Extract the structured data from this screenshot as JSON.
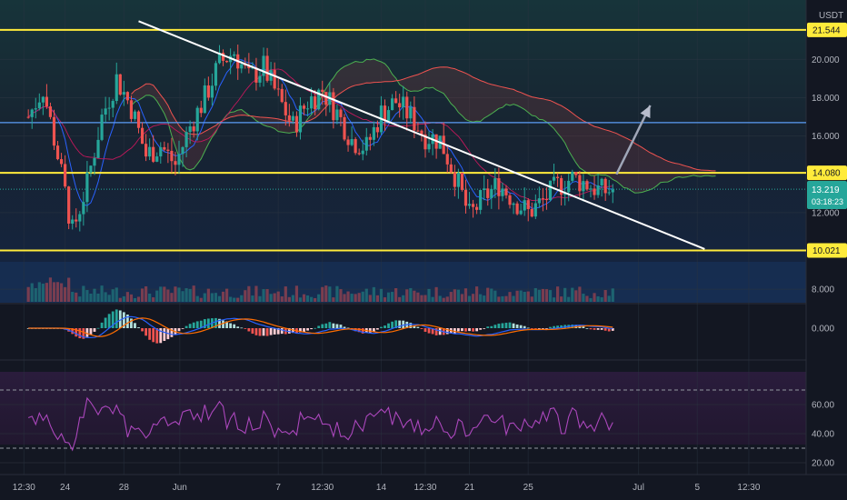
{
  "chart_data": [
    {
      "type": "candlestick",
      "title": "",
      "currency": "USDT",
      "last_price": "13.219",
      "countdown": "03:18:23",
      "y_ticks": [
        "20.000",
        "18.000",
        "16.000",
        "12.000",
        "8.000"
      ],
      "x_ticks": [
        "12:30",
        "24",
        "28",
        "Jun",
        "7",
        "12:30",
        "14",
        "12:30",
        "21",
        "25",
        "Jul",
        "5",
        "12:30"
      ],
      "horizontal_levels": [
        {
          "value": 21.544,
          "label": "21.544",
          "color": "#ffeb3b"
        },
        {
          "value": 14.08,
          "label": "14.080",
          "color": "#ffeb3b"
        },
        {
          "value": 10.021,
          "label": "10.021",
          "color": "#ffeb3b"
        },
        {
          "value": 16.7,
          "label": "",
          "color": "#5b9cf6"
        }
      ],
      "trendline": {
        "from": {
          "day": 7.5,
          "price": 22.0
        },
        "to": {
          "day": 46.0,
          "price": 10.1
        },
        "color": "#ffffff"
      },
      "projection_arrow": {
        "from": {
          "day": 40.0,
          "price": 14.0
        },
        "to": {
          "day": 42.3,
          "price": 17.6
        }
      },
      "close_series_approx": [
        {
          "day": 0,
          "close": 17.0
        },
        {
          "day": 1,
          "close": 18.5
        },
        {
          "day": 2,
          "close": 15.0
        },
        {
          "day": 3,
          "close": 11.0
        },
        {
          "day": 4,
          "close": 13.5
        },
        {
          "day": 5,
          "close": 17.0
        },
        {
          "day": 6,
          "close": 19.0
        },
        {
          "day": 7,
          "close": 17.5
        },
        {
          "day": 8,
          "close": 15.0
        },
        {
          "day": 9,
          "close": 15.5
        },
        {
          "day": 10,
          "close": 14.5
        },
        {
          "day": 11,
          "close": 16.5
        },
        {
          "day": 12,
          "close": 18.0
        },
        {
          "day": 13,
          "close": 19.8
        },
        {
          "day": 14,
          "close": 20.4
        },
        {
          "day": 15,
          "close": 19.0
        },
        {
          "day": 16,
          "close": 19.6
        },
        {
          "day": 17,
          "close": 18.0
        },
        {
          "day": 18,
          "close": 16.5
        },
        {
          "day": 19,
          "close": 17.8
        },
        {
          "day": 20,
          "close": 18.4
        },
        {
          "day": 21,
          "close": 17.2
        },
        {
          "day": 22,
          "close": 15.8
        },
        {
          "day": 23,
          "close": 15.4
        },
        {
          "day": 24,
          "close": 17.2
        },
        {
          "day": 25,
          "close": 17.8
        },
        {
          "day": 26,
          "close": 17.0
        },
        {
          "day": 27,
          "close": 16.0
        },
        {
          "day": 28,
          "close": 15.8
        },
        {
          "day": 29,
          "close": 14.0
        },
        {
          "day": 30,
          "close": 11.8
        },
        {
          "day": 31,
          "close": 12.8
        },
        {
          "day": 32,
          "close": 13.5
        },
        {
          "day": 33,
          "close": 12.7
        },
        {
          "day": 34,
          "close": 12.0
        },
        {
          "day": 35,
          "close": 12.6
        },
        {
          "day": 36,
          "close": 13.4
        },
        {
          "day": 37,
          "close": 13.8
        },
        {
          "day": 38,
          "close": 13.5
        },
        {
          "day": 39,
          "close": 13.1
        },
        {
          "day": 40,
          "close": 13.22
        }
      ]
    },
    {
      "type": "histogram",
      "indicator": "MACD",
      "y_ticks": [
        "0.000"
      ]
    },
    {
      "type": "line",
      "indicator": "RSI",
      "y_ticks": [
        "60.00",
        "40.00",
        "20.00"
      ],
      "bands": [
        70,
        30
      ]
    }
  ]
}
